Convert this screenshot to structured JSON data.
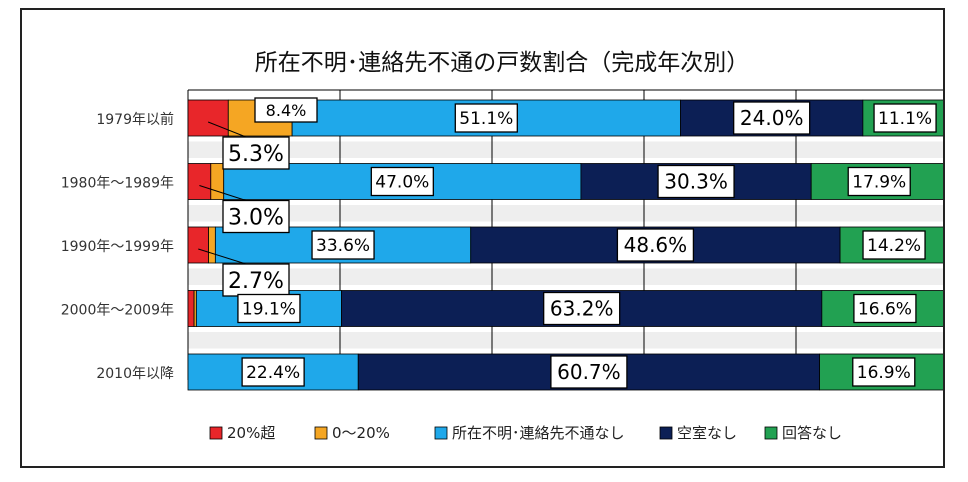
{
  "chart_data": {
    "type": "bar",
    "orientation": "horizontal",
    "stacked": "percent",
    "title": "所在不明･連絡先不通の戸数割合（完成年次別）",
    "categories": [
      "1979年以前",
      "1980年～1989年",
      "1990年～1999年",
      "2000年～2009年",
      "2010年以降"
    ],
    "xlim": [
      0,
      100
    ],
    "series": [
      {
        "name": "20%超",
        "color": "#e8262a",
        "values": [
          5.3,
          3.0,
          2.7,
          0.8,
          0.0
        ]
      },
      {
        "name": "0～20%",
        "color": "#f5a623",
        "values": [
          8.4,
          1.7,
          0.9,
          0.3,
          0.0
        ]
      },
      {
        "name": "所在不明･連絡先不通なし",
        "color": "#1fa8ea",
        "values": [
          51.1,
          47.0,
          33.6,
          19.1,
          22.4
        ]
      },
      {
        "name": "空室なし",
        "color": "#0c1f55",
        "values": [
          24.0,
          30.3,
          48.6,
          63.2,
          60.7
        ]
      },
      {
        "name": "回答なし",
        "color": "#22a152",
        "values": [
          11.1,
          17.9,
          14.2,
          16.6,
          16.9
        ]
      }
    ],
    "data_labels": [
      [
        {
          "text": "5.3%",
          "series": 0
        },
        {
          "text": "8.4%",
          "series": 1
        },
        {
          "text": "51.1%",
          "series": 2
        },
        {
          "text": "24.0%",
          "series": 3
        },
        {
          "text": "11.1%",
          "series": 4
        }
      ],
      [
        {
          "text": "3.0%",
          "series": 0
        },
        {
          "text": "47.0%",
          "series": 2
        },
        {
          "text": "30.3%",
          "series": 3
        },
        {
          "text": "17.9%",
          "series": 4
        }
      ],
      [
        {
          "text": "2.7%",
          "series": 0
        },
        {
          "text": "33.6%",
          "series": 2
        },
        {
          "text": "48.6%",
          "series": 3
        },
        {
          "text": "14.2%",
          "series": 4
        }
      ],
      [
        {
          "text": "19.1%",
          "series": 2
        },
        {
          "text": "63.2%",
          "series": 3
        },
        {
          "text": "16.6%",
          "series": 4
        }
      ],
      [
        {
          "text": "22.4%",
          "series": 2
        },
        {
          "text": "60.7%",
          "series": 3
        },
        {
          "text": "16.9%",
          "series": 4
        }
      ]
    ],
    "legend_position": "bottom",
    "grid": true
  }
}
